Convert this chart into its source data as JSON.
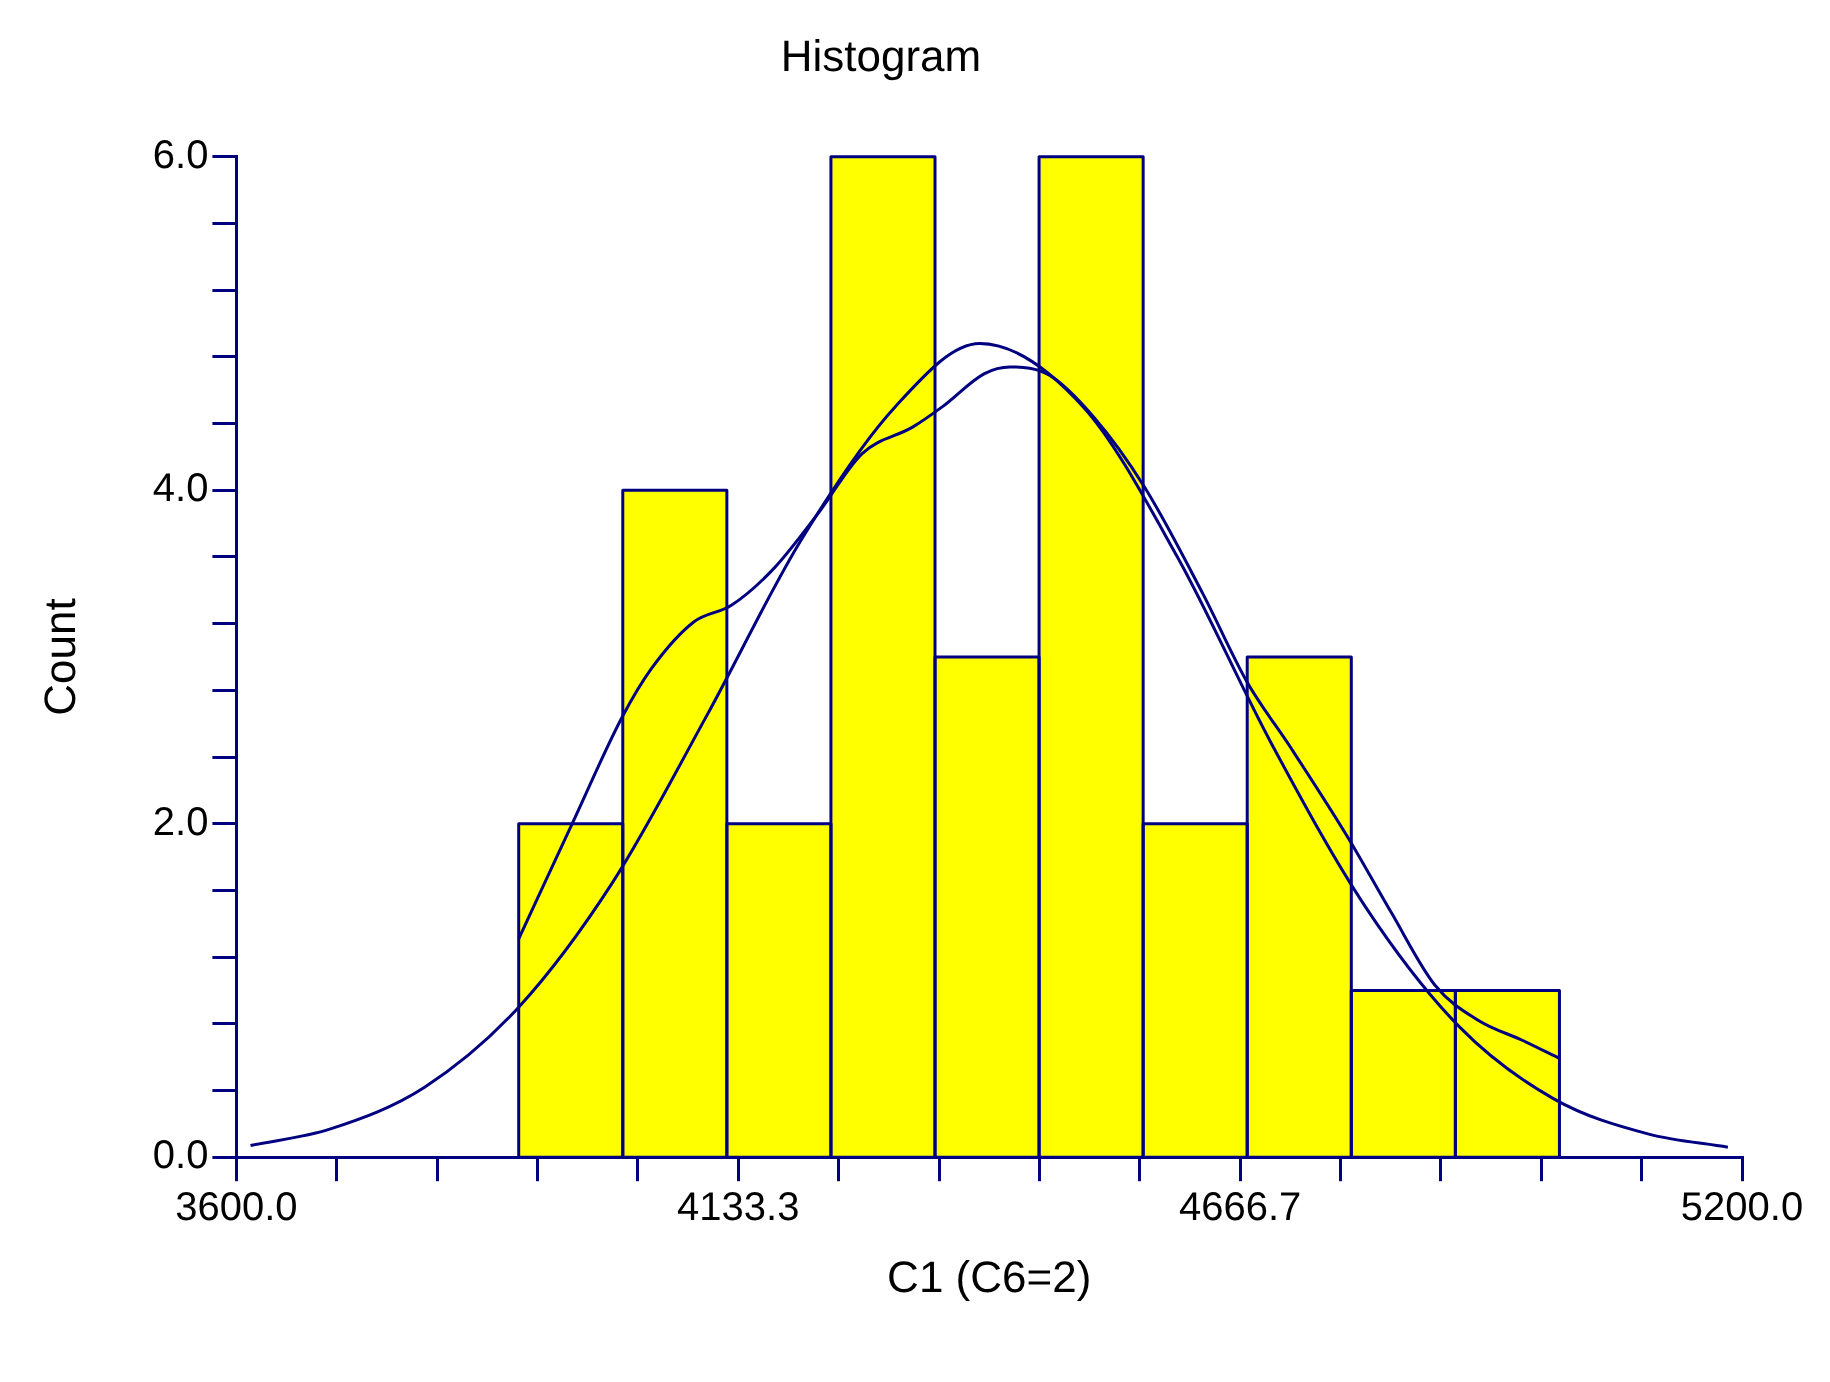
{
  "chart_data": {
    "type": "histogram",
    "title": "Histogram",
    "xlabel": "C1 (C6=2)",
    "ylabel": "Count",
    "bins": [
      3900,
      4010.6,
      4121.2,
      4231.8,
      4342.4,
      4453,
      4563.6,
      4674.2,
      4784.8,
      4895.4,
      5006
    ],
    "values": [
      2,
      4,
      2,
      6,
      3,
      6,
      2,
      3,
      1,
      1
    ],
    "color": "#ffff00",
    "series": [
      {
        "type": "line",
        "color": "#000080",
        "x": [
          3615,
          3700,
          3800,
          3900,
          4000,
          4100,
          4200,
          4300,
          4390,
          4500,
          4600,
          4700,
          4800,
          4900,
          5000,
          5100,
          5185
        ],
        "values": [
          0.07,
          0.17,
          0.42,
          0.9,
          1.65,
          2.65,
          3.7,
          4.5,
          4.88,
          4.5,
          3.6,
          2.48,
          1.5,
          0.78,
          0.35,
          0.14,
          0.06
        ]
      },
      {
        "type": "line",
        "color": "#000080",
        "x": [
          3900,
          3956,
          4010,
          4041,
          4086,
          4126,
          4171,
          4218,
          4265,
          4319,
          4350,
          4395,
          4422,
          4464,
          4511,
          4565,
          4627,
          4674,
          4720,
          4782,
          4827,
          4874,
          4920,
          4967,
          5007
        ],
        "values": [
          1.31,
          1.99,
          2.64,
          2.93,
          3.21,
          3.31,
          3.53,
          3.86,
          4.22,
          4.38,
          4.5,
          4.7,
          4.74,
          4.69,
          4.44,
          4.02,
          3.38,
          2.85,
          2.46,
          1.91,
          1.47,
          1.03,
          0.82,
          0.7,
          0.59
        ]
      }
    ],
    "xlim": [
      3600,
      5200
    ],
    "xticks": [
      {
        "value": 3600,
        "label": "3600.0"
      },
      {
        "value": 3706.67,
        "label": null
      },
      {
        "value": 3813.33,
        "label": null
      },
      {
        "value": 3920,
        "label": null
      },
      {
        "value": 4026.67,
        "label": null
      },
      {
        "value": 4133.3,
        "label": "4133.3"
      },
      {
        "value": 4240,
        "label": null
      },
      {
        "value": 4346.67,
        "label": null
      },
      {
        "value": 4453.33,
        "label": null
      },
      {
        "value": 4560,
        "label": null
      },
      {
        "value": 4666.7,
        "label": "4666.7"
      },
      {
        "value": 4773.33,
        "label": null
      },
      {
        "value": 4880,
        "label": null
      },
      {
        "value": 4986.67,
        "label": null
      },
      {
        "value": 5093.33,
        "label": null
      },
      {
        "value": 5200,
        "label": "5200.0"
      }
    ],
    "ylim": [
      0,
      6
    ],
    "yticks": [
      {
        "value": 0,
        "label": "0.0"
      },
      {
        "value": 0.4,
        "label": null
      },
      {
        "value": 0.8,
        "label": null
      },
      {
        "value": 1.2,
        "label": null
      },
      {
        "value": 1.6,
        "label": null
      },
      {
        "value": 2,
        "label": "2.0"
      },
      {
        "value": 2.4,
        "label": null
      },
      {
        "value": 2.8,
        "label": null
      },
      {
        "value": 3.2,
        "label": null
      },
      {
        "value": 3.6,
        "label": null
      },
      {
        "value": 4,
        "label": "4.0"
      },
      {
        "value": 4.4,
        "label": null
      },
      {
        "value": 4.8,
        "label": null
      },
      {
        "value": 5.2,
        "label": null
      },
      {
        "value": 5.6,
        "label": null
      },
      {
        "value": 6,
        "label": "6.0"
      }
    ]
  }
}
